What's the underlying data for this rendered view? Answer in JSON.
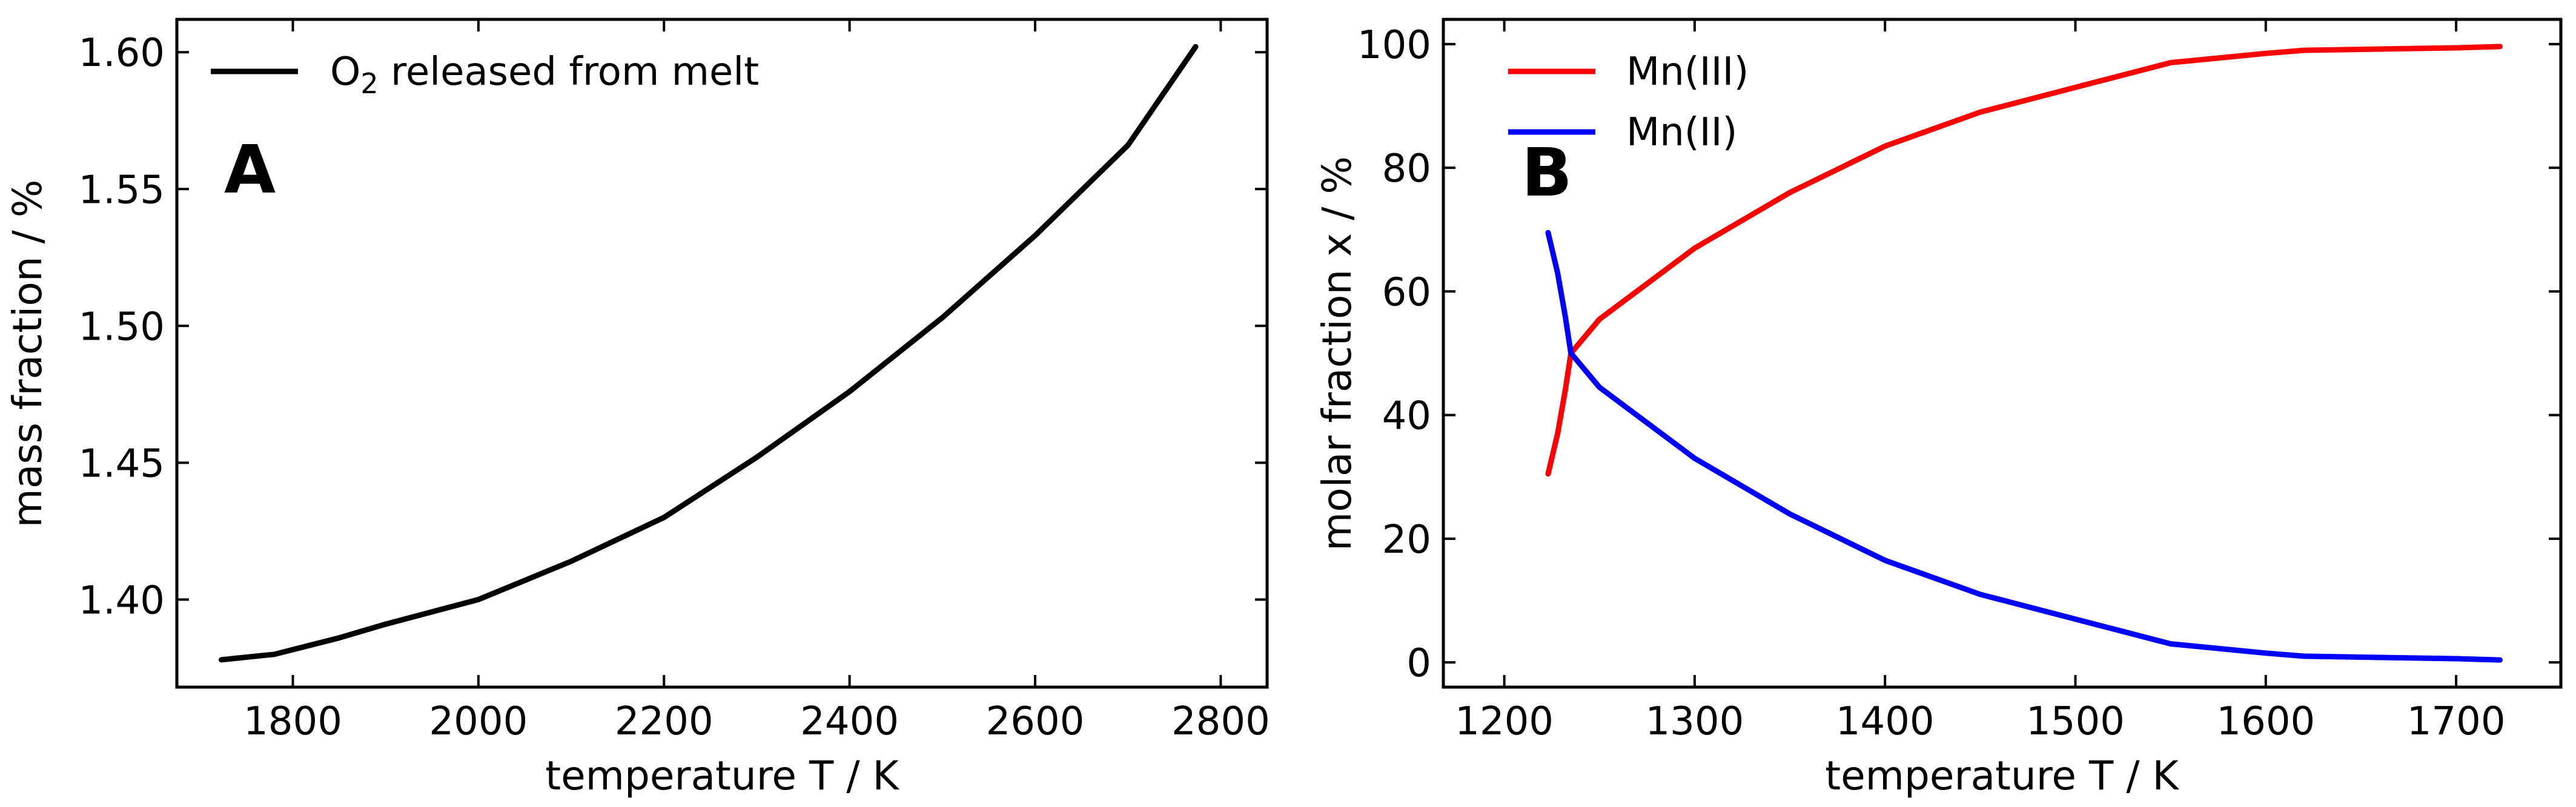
{
  "chart_data": [
    {
      "type": "line",
      "panel_label": "A",
      "xlabel": "temperature T / K",
      "ylabel": "mass fraction / %",
      "xlim": [
        1675,
        2850
      ],
      "ylim": [
        1.368,
        1.612
      ],
      "xticks": [
        1800,
        2000,
        2200,
        2400,
        2600,
        2800
      ],
      "xtick_labels": [
        "1800",
        "2000",
        "2200",
        "2400",
        "2600",
        "2800"
      ],
      "yticks": [
        1.4,
        1.45,
        1.5,
        1.55,
        1.6
      ],
      "ytick_labels": [
        "1.40",
        "1.45",
        "1.50",
        "1.55",
        "1.60"
      ],
      "legend_placement": "top-left",
      "series": [
        {
          "name": "O2 released from melt",
          "legend_main": "O",
          "legend_sub": "2",
          "legend_rest": " released from melt",
          "color": "#000000",
          "x": [
            1723,
            1780,
            1850,
            1900,
            2000,
            2100,
            2200,
            2300,
            2400,
            2500,
            2600,
            2700,
            2773
          ],
          "y": [
            1.378,
            1.38,
            1.386,
            1.391,
            1.4,
            1.414,
            1.43,
            1.452,
            1.476,
            1.503,
            1.533,
            1.566,
            1.602
          ]
        }
      ]
    },
    {
      "type": "line",
      "panel_label": "B",
      "xlabel": "temperature T / K",
      "ylabel": "molar fraction x / %",
      "xlim": [
        1168,
        1755
      ],
      "ylim": [
        -4,
        104
      ],
      "xticks": [
        1200,
        1300,
        1400,
        1500,
        1600,
        1700
      ],
      "xtick_labels": [
        "1200",
        "1300",
        "1400",
        "1500",
        "1600",
        "1700"
      ],
      "yticks": [
        0,
        20,
        40,
        60,
        80,
        100
      ],
      "ytick_labels": [
        "0",
        "20",
        "40",
        "60",
        "80",
        "100"
      ],
      "legend_placement": "top-left",
      "series": [
        {
          "name": "Mn(III)",
          "color": "#ff0000",
          "x": [
            1223,
            1228,
            1232,
            1235,
            1250,
            1300,
            1350,
            1400,
            1450,
            1500,
            1520,
            1550,
            1600,
            1620,
            1700,
            1723
          ],
          "y": [
            30.5,
            37,
            44,
            50,
            55.5,
            67,
            76,
            83.5,
            89,
            93,
            94.6,
            97,
            98.5,
            99,
            99.4,
            99.6
          ]
        },
        {
          "name": "Mn(II)",
          "color": "#0000ff",
          "x": [
            1223,
            1228,
            1232,
            1235,
            1250,
            1300,
            1350,
            1400,
            1450,
            1500,
            1520,
            1550,
            1600,
            1620,
            1700,
            1723
          ],
          "y": [
            69.5,
            63,
            56,
            50,
            44.5,
            33,
            24,
            16.5,
            11,
            7,
            5.4,
            3,
            1.5,
            1,
            0.6,
            0.4
          ]
        }
      ]
    }
  ]
}
